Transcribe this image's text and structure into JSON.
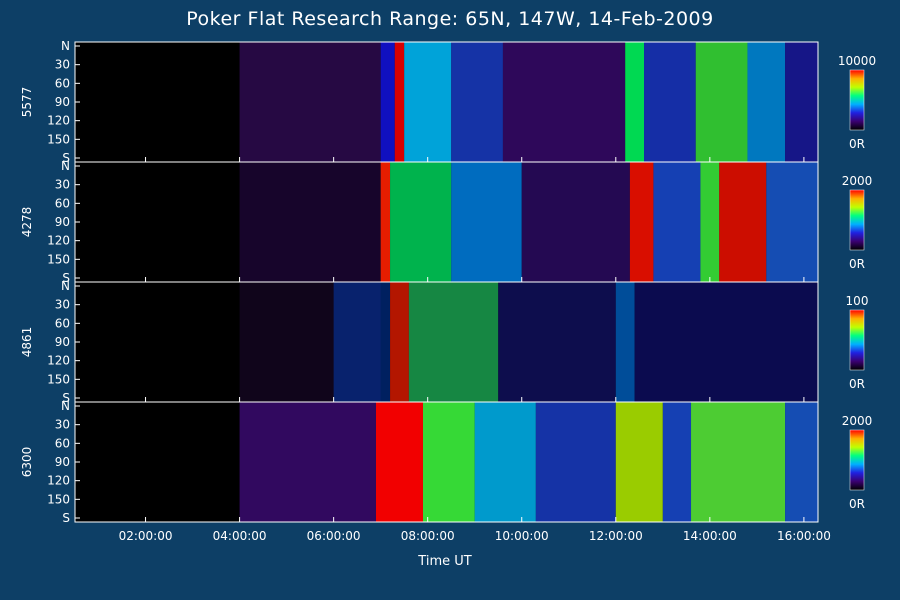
{
  "title": "Poker Flat Research Range: 65N, 147W, 14-Feb-2009",
  "xlabel": "Time UT",
  "colorbar_min_label": "0R",
  "chart_data": {
    "type": "heatmap",
    "title": "Poker Flat Research Range: 65N, 147W, 14-Feb-2009",
    "xlabel": "Time UT",
    "x_ticks": [
      "02:00:00",
      "04:00:00",
      "06:00:00",
      "08:00:00",
      "10:00:00",
      "12:00:00",
      "14:00:00",
      "16:00:00"
    ],
    "x_tick_hours": [
      2,
      4,
      6,
      8,
      10,
      12,
      14,
      16
    ],
    "xlim_hours": [
      0.5,
      16.3
    ],
    "y_tick_labels": [
      "N",
      "30",
      "60",
      "90",
      "120",
      "150",
      "S"
    ],
    "y_tick_values": [
      0,
      30,
      60,
      90,
      120,
      150,
      180
    ],
    "ylim": [
      0,
      180
    ],
    "colormap": [
      "#000000",
      "#3a0070",
      "#2020e0",
      "#00b0ff",
      "#00ff80",
      "#c0ff00",
      "#ffb000",
      "#ff0000"
    ],
    "panels": [
      {
        "ylabel": "5577",
        "colorbar_max": "10000",
        "colorbar_min": "0R"
      },
      {
        "ylabel": "4278",
        "colorbar_max": "2000",
        "colorbar_min": "0R"
      },
      {
        "ylabel": "4861",
        "colorbar_max": "100",
        "colorbar_min": "0R"
      },
      {
        "ylabel": "6300",
        "colorbar_max": "2000",
        "colorbar_min": "0R"
      }
    ]
  }
}
